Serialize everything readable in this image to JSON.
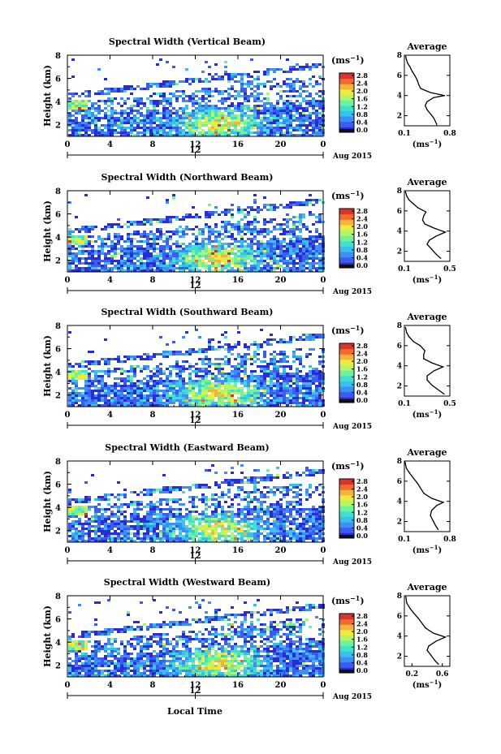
{
  "figure": {
    "xlabel": "Local Time",
    "date_label": "Aug 2015",
    "mid_date_tick": "12",
    "colorbar_unit_prefix": "(ms",
    "colorbar_unit_exp": "−1",
    "colorbar_unit_suffix": ")",
    "colormap": [
      "#2b2bd6",
      "#3a5cf0",
      "#3c8ff5",
      "#38c0f0",
      "#3fe0d0",
      "#6ef2a0",
      "#b2f46a",
      "#ecec3c",
      "#f7b23a",
      "#f36a2e",
      "#d8342c"
    ]
  },
  "chart_data": [
    {
      "type": "heatmap",
      "title": "Spectral Width (Vertical Beam)",
      "ylabel": "Height (km)",
      "xlim": [
        0,
        24
      ],
      "ylim": [
        1,
        8
      ],
      "x_ticks": [
        "0",
        "4",
        "8",
        "12",
        "16",
        "20",
        "0"
      ],
      "y_ticks": [
        "2",
        "4",
        "6",
        "8"
      ],
      "colorbar": {
        "range": [
          0,
          2.8
        ],
        "tick_labels": [
          "0.0",
          "0.4",
          "0.8",
          "1.2",
          "1.6",
          "2.0",
          "2.4",
          "2.8"
        ]
      },
      "profile": {
        "title": "Average",
        "xlim": [
          0.1,
          0.8
        ],
        "x_ticks": [
          "0.1",
          "0.8"
        ],
        "y_ticks": [
          "2",
          "4",
          "6",
          "8"
        ],
        "xlabel_prefix": "(ms",
        "xlabel_exp": "−1",
        "xlabel_suffix": ")",
        "points": [
          [
            0.6,
            1.1
          ],
          [
            0.58,
            1.4
          ],
          [
            0.55,
            1.8
          ],
          [
            0.5,
            2.2
          ],
          [
            0.45,
            2.6
          ],
          [
            0.42,
            3.0
          ],
          [
            0.45,
            3.4
          ],
          [
            0.55,
            3.8
          ],
          [
            0.72,
            4.0
          ],
          [
            0.5,
            4.3
          ],
          [
            0.35,
            4.7
          ],
          [
            0.32,
            5.1
          ],
          [
            0.3,
            5.5
          ],
          [
            0.26,
            6.0
          ],
          [
            0.22,
            6.4
          ],
          [
            0.19,
            6.8
          ],
          [
            0.15,
            7.2
          ],
          [
            0.13,
            7.6
          ],
          [
            0.12,
            7.9
          ]
        ]
      }
    },
    {
      "type": "heatmap",
      "title": "Spectral Width (Northward Beam)",
      "ylabel": "Height (km)",
      "xlim": [
        0,
        24
      ],
      "ylim": [
        1,
        8
      ],
      "x_ticks": [
        "0",
        "4",
        "8",
        "12",
        "16",
        "20",
        "0"
      ],
      "y_ticks": [
        "2",
        "4",
        "6",
        "8"
      ],
      "colorbar": {
        "range": [
          0,
          2.8
        ],
        "tick_labels": [
          "0.0",
          "0.4",
          "0.8",
          "1.2",
          "1.6",
          "2.0",
          "2.4",
          "2.8"
        ]
      },
      "profile": {
        "title": "Average",
        "xlim": [
          0.1,
          0.5
        ],
        "x_ticks": [
          "0.1",
          "0.5"
        ],
        "y_ticks": [
          "2",
          "4",
          "6",
          "8"
        ],
        "xlabel_prefix": "(ms",
        "xlabel_exp": "−1",
        "xlabel_suffix": ")",
        "points": [
          [
            0.42,
            1.3
          ],
          [
            0.38,
            1.7
          ],
          [
            0.34,
            2.2
          ],
          [
            0.3,
            2.7
          ],
          [
            0.32,
            3.1
          ],
          [
            0.38,
            3.5
          ],
          [
            0.46,
            3.9
          ],
          [
            0.36,
            4.3
          ],
          [
            0.28,
            4.7
          ],
          [
            0.26,
            5.1
          ],
          [
            0.27,
            5.5
          ],
          [
            0.29,
            5.9
          ],
          [
            0.22,
            6.3
          ],
          [
            0.18,
            6.7
          ],
          [
            0.14,
            7.1
          ],
          [
            0.12,
            7.5
          ],
          [
            0.11,
            7.9
          ]
        ]
      }
    },
    {
      "type": "heatmap",
      "title": "Spectral Width (Southward Beam)",
      "ylabel": "Height (km)",
      "xlim": [
        0,
        24
      ],
      "ylim": [
        1,
        8
      ],
      "x_ticks": [
        "0",
        "4",
        "8",
        "12",
        "16",
        "20",
        "0"
      ],
      "y_ticks": [
        "2",
        "4",
        "6",
        "8"
      ],
      "colorbar": {
        "range": [
          0,
          2.8
        ],
        "tick_labels": [
          "0.0",
          "0.4",
          "0.8",
          "1.2",
          "1.6",
          "2.0",
          "2.4",
          "2.8"
        ]
      },
      "profile": {
        "title": "Average",
        "xlim": [
          0.1,
          0.5
        ],
        "x_ticks": [
          "0.1",
          "0.5"
        ],
        "y_ticks": [
          "2",
          "4",
          "6",
          "8"
        ],
        "xlabel_prefix": "(ms",
        "xlabel_exp": "−1",
        "xlabel_suffix": ")",
        "points": [
          [
            0.45,
            1.2
          ],
          [
            0.4,
            1.6
          ],
          [
            0.34,
            2.1
          ],
          [
            0.3,
            2.6
          ],
          [
            0.3,
            3.0
          ],
          [
            0.36,
            3.5
          ],
          [
            0.44,
            3.9
          ],
          [
            0.34,
            4.3
          ],
          [
            0.27,
            4.7
          ],
          [
            0.27,
            5.1
          ],
          [
            0.28,
            5.5
          ],
          [
            0.24,
            6.0
          ],
          [
            0.18,
            6.4
          ],
          [
            0.14,
            6.9
          ],
          [
            0.12,
            7.3
          ],
          [
            0.11,
            7.8
          ]
        ]
      }
    },
    {
      "type": "heatmap",
      "title": "Spectral Width (Eastward Beam)",
      "ylabel": "Height (km)",
      "xlim": [
        0,
        24
      ],
      "ylim": [
        1,
        8
      ],
      "x_ticks": [
        "0",
        "4",
        "8",
        "12",
        "16",
        "20",
        "0"
      ],
      "y_ticks": [
        "2",
        "4",
        "6",
        "8"
      ],
      "colorbar": {
        "range": [
          0,
          2.8
        ],
        "tick_labels": [
          "0.0",
          "0.4",
          "0.8",
          "1.2",
          "1.6",
          "2.0",
          "2.4",
          "2.8"
        ]
      },
      "profile": {
        "title": "Average",
        "xlim": [
          0.1,
          0.8
        ],
        "x_ticks": [
          "0.1",
          "0.8"
        ],
        "y_ticks": [
          "2",
          "4",
          "6",
          "8"
        ],
        "xlabel_prefix": "(ms",
        "xlabel_exp": "−1",
        "xlabel_suffix": ")",
        "points": [
          [
            0.62,
            1.2
          ],
          [
            0.58,
            1.6
          ],
          [
            0.54,
            2.1
          ],
          [
            0.5,
            2.6
          ],
          [
            0.52,
            3.1
          ],
          [
            0.6,
            3.6
          ],
          [
            0.7,
            3.9
          ],
          [
            0.52,
            4.3
          ],
          [
            0.4,
            4.8
          ],
          [
            0.35,
            5.3
          ],
          [
            0.3,
            5.8
          ],
          [
            0.24,
            6.3
          ],
          [
            0.18,
            6.8
          ],
          [
            0.13,
            7.3
          ],
          [
            0.11,
            7.9
          ]
        ]
      }
    },
    {
      "type": "heatmap",
      "title": "Spectral Width (Westward Beam)",
      "ylabel": "Height (km)",
      "xlim": [
        0,
        24
      ],
      "ylim": [
        1,
        8
      ],
      "x_ticks": [
        "0",
        "4",
        "8",
        "12",
        "16",
        "20",
        "0"
      ],
      "y_ticks": [
        "2",
        "4",
        "6",
        "8"
      ],
      "colorbar": {
        "range": [
          0,
          2.8
        ],
        "tick_labels": [
          "0.0",
          "0.4",
          "0.8",
          "1.2",
          "1.6",
          "2.0",
          "2.4",
          "2.8"
        ]
      },
      "profile": {
        "title": "Average",
        "xlim": [
          0.1,
          0.7
        ],
        "x_ticks": [
          "0.2",
          "0.6"
        ],
        "y_ticks": [
          "2",
          "4",
          "6",
          "8"
        ],
        "xlabel_prefix": "(ms",
        "xlabel_exp": "−1",
        "xlabel_suffix": ")",
        "points": [
          [
            0.55,
            1.2
          ],
          [
            0.5,
            1.6
          ],
          [
            0.45,
            2.1
          ],
          [
            0.4,
            2.6
          ],
          [
            0.42,
            3.0
          ],
          [
            0.52,
            3.5
          ],
          [
            0.64,
            3.9
          ],
          [
            0.48,
            4.3
          ],
          [
            0.38,
            4.8
          ],
          [
            0.33,
            5.3
          ],
          [
            0.28,
            5.8
          ],
          [
            0.22,
            6.3
          ],
          [
            0.17,
            6.8
          ],
          [
            0.13,
            7.3
          ],
          [
            0.12,
            7.9
          ]
        ]
      }
    }
  ]
}
